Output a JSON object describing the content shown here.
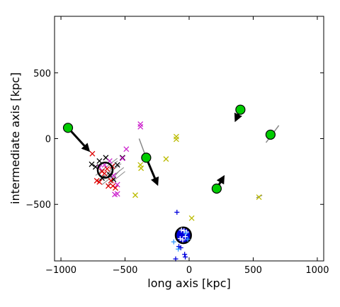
{
  "chart_data": {
    "type": "scatter",
    "title": "",
    "xlabel": "long axis [kpc]",
    "ylabel": "intermediate axis [kpc]",
    "xlim": [
      -1050,
      1050
    ],
    "ylim": [
      -930,
      930
    ],
    "grid": false,
    "xticks": [
      -1000,
      -500,
      0,
      500,
      1000
    ],
    "xtick_labels": [
      "−1000",
      "−500",
      "0",
      "500",
      "1000"
    ],
    "yticks": [
      -500,
      0,
      500
    ],
    "ytick_labels": [
      "−500",
      "0",
      "500"
    ],
    "colors": {
      "green": "#00cc00",
      "black": "#000000",
      "red": "#dd0000",
      "magenta": "#cc22cc",
      "olive": "#bbbb00",
      "blue": "#0000dd",
      "lightblue": "#3399ff",
      "gray": "#888888",
      "navy": "#000088"
    },
    "galaxies": [
      {
        "x": -945,
        "y": 82,
        "dx": 150,
        "dy": -160
      },
      {
        "x": -335,
        "y": -145,
        "dx": 80,
        "dy": -185
      },
      {
        "x": 400,
        "y": 220,
        "dx": -30,
        "dy": -65
      },
      {
        "x": 635,
        "y": 30,
        "dx": 0,
        "dy": 0
      },
      {
        "x": 215,
        "y": -380,
        "dx": 45,
        "dy": 75
      }
    ],
    "trail_segments": [
      {
        "x0": -390,
        "y0": 0,
        "x1": -335,
        "y1": -145
      },
      {
        "x0": 600,
        "y0": -30,
        "x1": 700,
        "y1": 100
      },
      {
        "x0": 525,
        "y0": -450,
        "x1": 570,
        "y1": -430
      }
    ],
    "circles": [
      {
        "x": -655,
        "y": -240,
        "r": 58,
        "fill": "none"
      },
      {
        "x": -45,
        "y": -735,
        "r": 60,
        "fill": "blue"
      }
    ],
    "x_markers": [
      {
        "x": -760,
        "y": -195,
        "c": "black"
      },
      {
        "x": -730,
        "y": -215,
        "c": "black"
      },
      {
        "x": -700,
        "y": -170,
        "c": "black"
      },
      {
        "x": -650,
        "y": -145,
        "c": "black"
      },
      {
        "x": -620,
        "y": -275,
        "c": "black"
      },
      {
        "x": -590,
        "y": -310,
        "c": "black"
      },
      {
        "x": -520,
        "y": -145,
        "c": "black"
      },
      {
        "x": -560,
        "y": -200,
        "c": "black"
      },
      {
        "x": -680,
        "y": -300,
        "c": "black"
      },
      {
        "x": -755,
        "y": -115,
        "c": "red"
      },
      {
        "x": -720,
        "y": -320,
        "c": "red"
      },
      {
        "x": -700,
        "y": -330,
        "c": "red"
      },
      {
        "x": -680,
        "y": -250,
        "c": "red"
      },
      {
        "x": -660,
        "y": -265,
        "c": "red"
      },
      {
        "x": -640,
        "y": -230,
        "c": "red"
      },
      {
        "x": -600,
        "y": -210,
        "c": "red"
      },
      {
        "x": -595,
        "y": -360,
        "c": "red"
      },
      {
        "x": -610,
        "y": -320,
        "c": "red"
      },
      {
        "x": -630,
        "y": -360,
        "c": "red"
      },
      {
        "x": -575,
        "y": -375,
        "c": "red"
      },
      {
        "x": -700,
        "y": -220,
        "c": "magenta"
      },
      {
        "x": -660,
        "y": -200,
        "c": "magenta"
      },
      {
        "x": -620,
        "y": -170,
        "c": "magenta"
      },
      {
        "x": -590,
        "y": -280,
        "c": "magenta"
      },
      {
        "x": -560,
        "y": -350,
        "c": "magenta"
      },
      {
        "x": -580,
        "y": -425,
        "c": "magenta"
      },
      {
        "x": -560,
        "y": -420,
        "c": "magenta"
      },
      {
        "x": -490,
        "y": -80,
        "c": "magenta"
      },
      {
        "x": -380,
        "y": 110,
        "c": "magenta"
      },
      {
        "x": -380,
        "y": 90,
        "c": "magenta"
      },
      {
        "x": -520,
        "y": -150,
        "c": "magenta"
      },
      {
        "x": -380,
        "y": -200,
        "c": "olive"
      },
      {
        "x": -375,
        "y": -225,
        "c": "olive"
      },
      {
        "x": -180,
        "y": -155,
        "c": "olive"
      },
      {
        "x": -100,
        "y": 15,
        "c": "olive"
      },
      {
        "x": -100,
        "y": -5,
        "c": "olive"
      },
      {
        "x": 20,
        "y": -605,
        "c": "olive"
      },
      {
        "x": -420,
        "y": -430,
        "c": "olive"
      },
      {
        "x": 545,
        "y": -445,
        "c": "olive"
      }
    ],
    "plus_markers": [
      {
        "x": -95,
        "y": -560,
        "c": "blue"
      },
      {
        "x": -60,
        "y": -695,
        "c": "blue"
      },
      {
        "x": -40,
        "y": -700,
        "c": "blue"
      },
      {
        "x": -20,
        "y": -710,
        "c": "blue"
      },
      {
        "x": -70,
        "y": -760,
        "c": "blue"
      },
      {
        "x": -50,
        "y": -770,
        "c": "blue"
      },
      {
        "x": -30,
        "y": -745,
        "c": "blue"
      },
      {
        "x": -80,
        "y": -820,
        "c": "blue"
      },
      {
        "x": -65,
        "y": -830,
        "c": "blue"
      },
      {
        "x": -35,
        "y": -880,
        "c": "blue"
      },
      {
        "x": -30,
        "y": -900,
        "c": "blue"
      },
      {
        "x": -105,
        "y": -915,
        "c": "blue"
      },
      {
        "x": -120,
        "y": -785,
        "c": "lightblue"
      },
      {
        "x": -85,
        "y": -840,
        "c": "lightblue"
      },
      {
        "x": -25,
        "y": -720,
        "c": "lightblue"
      },
      {
        "x": -10,
        "y": -765,
        "c": "lightblue"
      }
    ],
    "gray_lines": [
      {
        "x0": -730,
        "y0": -280,
        "x1": -560,
        "y1": -150
      },
      {
        "x0": -700,
        "y0": -320,
        "x1": -530,
        "y1": -190
      },
      {
        "x0": -680,
        "y0": -350,
        "x1": -510,
        "y1": -220
      },
      {
        "x0": -640,
        "y0": -360,
        "x1": -500,
        "y1": -250
      },
      {
        "x0": -660,
        "y0": -300,
        "x1": -560,
        "y1": -170
      },
      {
        "x0": -620,
        "y0": -330,
        "x1": -540,
        "y1": -240
      }
    ]
  }
}
